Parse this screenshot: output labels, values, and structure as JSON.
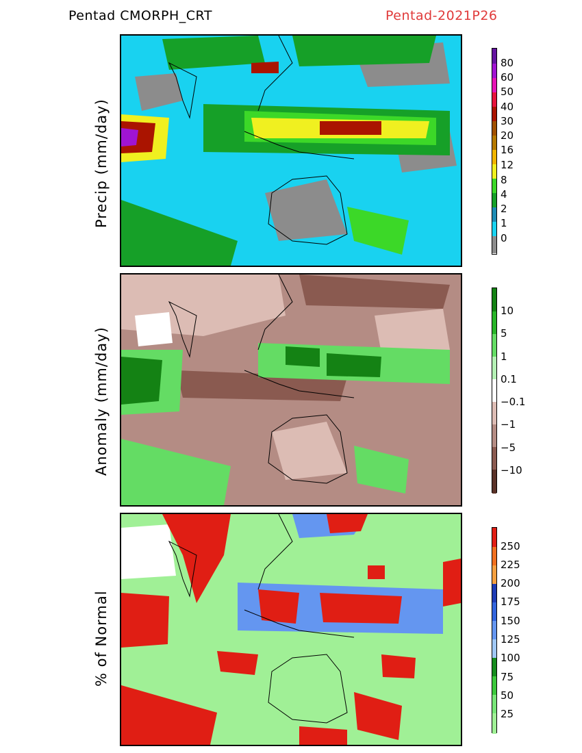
{
  "header": {
    "product": "Pentad CMORPH_CRT",
    "period": "Pentad-2021P26"
  },
  "panels": [
    {
      "ylabel": "Precip (mm/day)",
      "colorbar": {
        "colors": [
          "#8c8c8c",
          "#19d2f0",
          "#1e8cb4",
          "#16a028",
          "#3cd828",
          "#f0f020",
          "#f0b400",
          "#b47800",
          "#a05000",
          "#aa1400",
          "#e6143c",
          "#e614b4",
          "#a014d2",
          "#6414a0"
        ],
        "ticks": [
          "0",
          "1",
          "2",
          "4",
          "8",
          "12",
          "16",
          "20",
          "30",
          "40",
          "50",
          "60",
          "80"
        ]
      }
    },
    {
      "ylabel": "Anomaly (mm/day)",
      "colorbar": {
        "colors": [
          "#5a3228",
          "#8a5a50",
          "#b48c84",
          "#dcbcb4",
          "#ffffff",
          "#b4f0b4",
          "#64dc64",
          "#28b428",
          "#148214"
        ],
        "ticks": [
          "−10",
          "−5",
          "−1",
          "−0.1",
          "0.1",
          "1",
          "5",
          "10"
        ]
      }
    },
    {
      "ylabel": "% of Normal",
      "colorbar": {
        "colors": [
          "#a0f096",
          "#78e678",
          "#3cc83c",
          "#168c1e",
          "#a0c8f5",
          "#6496f0",
          "#3264dc",
          "#1e3cb4",
          "#f5a040",
          "#f07020",
          "#e01e14"
        ],
        "ticks": [
          "25",
          "50",
          "75",
          "100",
          "125",
          "150",
          "175",
          "200",
          "225",
          "250"
        ]
      }
    }
  ]
}
